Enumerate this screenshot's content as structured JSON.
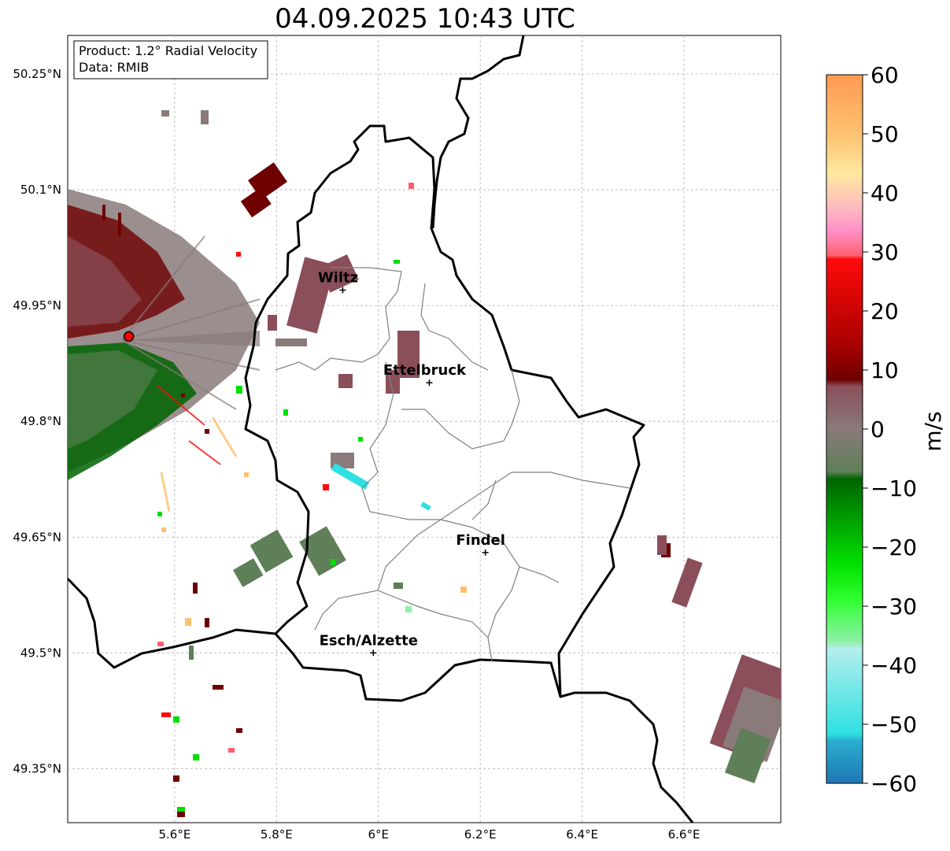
{
  "title": "04.09.2025 10:43 UTC",
  "info": {
    "product": "Product: 1.2° Radial Velocity",
    "data": "Data: RMIB"
  },
  "axes": {
    "lon_range": [
      5.39,
      6.79
    ],
    "lat_range": [
      49.28,
      50.3
    ],
    "x_ticks": [
      {
        "value": 5.6,
        "label": "5.6°E"
      },
      {
        "value": 5.8,
        "label": "5.8°E"
      },
      {
        "value": 6.0,
        "label": "6°E"
      },
      {
        "value": 6.2,
        "label": "6.2°E"
      },
      {
        "value": 6.4,
        "label": "6.4°E"
      },
      {
        "value": 6.6,
        "label": "6.6°E"
      }
    ],
    "y_ticks": [
      {
        "value": 50.25,
        "label": "50.25°N"
      },
      {
        "value": 50.1,
        "label": "50.1°N"
      },
      {
        "value": 49.95,
        "label": "49.95°N"
      },
      {
        "value": 49.8,
        "label": "49.8°N"
      },
      {
        "value": 49.65,
        "label": "49.65°N"
      },
      {
        "value": 49.5,
        "label": "49.5°N"
      },
      {
        "value": 49.35,
        "label": "49.35°N"
      }
    ],
    "grid": true
  },
  "cities": [
    {
      "name": "Wiltz",
      "lon": 5.93,
      "lat": 49.97
    },
    {
      "name": "Ettelbruck",
      "lon": 6.1,
      "lat": 49.85
    },
    {
      "name": "Findel",
      "lon": 6.21,
      "lat": 49.63
    },
    {
      "name": "Esch/Alzette",
      "lon": 5.99,
      "lat": 49.5
    }
  ],
  "radar_site": {
    "lon": 5.51,
    "lat": 49.91
  },
  "colorbar": {
    "label": "m/s",
    "min": -60,
    "max": 60,
    "ticks": [
      "60",
      "50",
      "40",
      "30",
      "20",
      "10",
      "0",
      "−10",
      "−20",
      "−30",
      "−40",
      "−50",
      "−60"
    ],
    "colors": {
      "deep_blue": "#1f77b4",
      "cyan": "#2ee0e0",
      "light_cyan": "#b5eeee",
      "light_green": "#8ff0a8",
      "green": "#00e000",
      "dark_green": "#006400",
      "gray_green": "#5e7f58",
      "gray": "#8a7a7a",
      "mauve": "#8a4f5a",
      "dark_red": "#6e0000",
      "red": "#ff0a0a",
      "salmon": "#ff6070",
      "pink": "#ff90c8",
      "light_pink": "#ffb8c0",
      "pale_yellow": "#ffe8a0",
      "light_orange": "#ffc070",
      "orange": "#ff9a50"
    }
  }
}
